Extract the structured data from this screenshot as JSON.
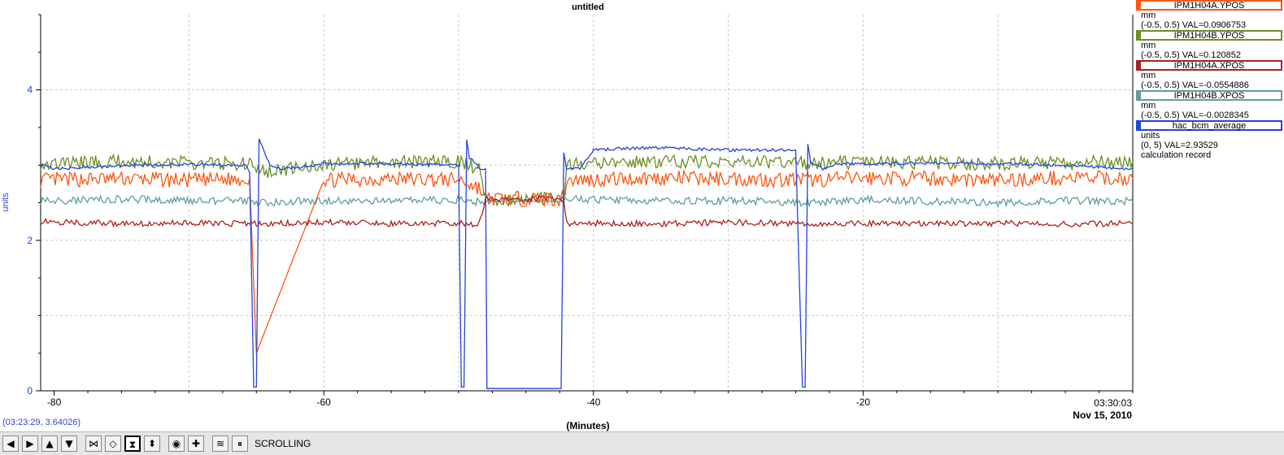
{
  "chart_data": {
    "type": "line",
    "title": "untitled",
    "xlabel": "(Minutes)",
    "ylabel": "units",
    "xlim": [
      -81,
      0
    ],
    "ylim": [
      0,
      5
    ],
    "x_ticks": [
      -80,
      -60,
      -40,
      -20
    ],
    "x_tick_labels": [
      "-80",
      "-60",
      "-40",
      "-20"
    ],
    "y_ticks": [
      0,
      2,
      4
    ],
    "y_tick_labels": [
      "0",
      "2",
      "4"
    ],
    "x_end_label": "03:30:03",
    "date_label": "Nov 15, 2010",
    "grid": true,
    "legend_position": "right",
    "series": [
      {
        "name": "IPM1H04A.YPOS",
        "color": "#ff5511",
        "units": "mm",
        "range": "(-0.5, 0.5)",
        "val_text": "VAL=0.0906753",
        "x": [
          -81,
          -75,
          -70,
          -65.5,
          -65,
          -60,
          -55,
          -49.7,
          -49.3,
          -48.5,
          -48,
          -42.2,
          -42,
          -35,
          -30,
          -24,
          -20,
          -15,
          -10,
          -5,
          0
        ],
        "y": [
          2.8,
          2.82,
          2.8,
          2.82,
          0.5,
          2.8,
          2.82,
          2.8,
          2.75,
          2.7,
          2.55,
          2.55,
          2.8,
          2.83,
          2.82,
          2.8,
          2.83,
          2.82,
          2.8,
          2.83,
          2.82
        ]
      },
      {
        "name": "IPM1H04B.YPOS",
        "color": "#6b8e23",
        "units": "mm",
        "range": "(-0.5, 0.5)",
        "val_text": "VAL=0.120852",
        "x": [
          -81,
          -75,
          -70,
          -65.5,
          -65,
          -60,
          -55,
          -49.7,
          -49.3,
          -48.5,
          -48,
          -42.2,
          -42,
          -35,
          -30,
          -24,
          -20,
          -15,
          -10,
          -5,
          0
        ],
        "y": [
          3.02,
          3.05,
          3.03,
          3.02,
          2.9,
          3.0,
          3.04,
          3.05,
          3.0,
          2.95,
          2.55,
          2.55,
          3.0,
          3.05,
          3.05,
          3.02,
          3.04,
          3.03,
          3.02,
          3.03,
          3.05
        ]
      },
      {
        "name": "IPM1H04A.XPOS",
        "color": "#aa2222",
        "units": "mm",
        "range": "(-0.5, 0.5)",
        "val_text": "VAL=-0.0554886",
        "x": [
          -81,
          -75,
          -70,
          -65.5,
          -65,
          -60,
          -55,
          -49.7,
          -49.3,
          -48.5,
          -48,
          -42.2,
          -42,
          -35,
          -30,
          -24,
          -20,
          -15,
          -10,
          -5,
          0
        ],
        "y": [
          2.25,
          2.22,
          2.23,
          2.22,
          2.22,
          2.24,
          2.22,
          2.23,
          2.2,
          2.22,
          2.55,
          2.55,
          2.23,
          2.22,
          2.24,
          2.22,
          2.23,
          2.22,
          2.23,
          2.22,
          2.22
        ]
      },
      {
        "name": "IPM1H04B.XPOS",
        "color": "#5f9ea0",
        "units": "mm",
        "range": "(-0.5, 0.5)",
        "val_text": "VAL=-0.0028345",
        "x": [
          -81,
          -75,
          -70,
          -65.5,
          -65,
          -60,
          -55,
          -49.7,
          -49.3,
          -48.5,
          -48,
          -42.2,
          -42,
          -35,
          -30,
          -24,
          -20,
          -15,
          -10,
          -5,
          0
        ],
        "y": [
          2.52,
          2.55,
          2.53,
          2.52,
          2.5,
          2.53,
          2.52,
          2.54,
          2.5,
          2.52,
          2.52,
          2.52,
          2.55,
          2.52,
          2.53,
          2.5,
          2.54,
          2.52,
          2.5,
          2.53,
          2.52
        ]
      },
      {
        "name": "hac_bcm_average",
        "color": "#2244dd",
        "units": "units",
        "range": "(0, 5)",
        "val_text": "VAL=2.93529",
        "extra_text": "calculation record",
        "x": [
          -81,
          -80,
          -75,
          -70,
          -65.7,
          -65.5,
          -65.2,
          -65.0,
          -64.8,
          -64.0,
          -63.0,
          -60,
          -55,
          -50.0,
          -49.8,
          -49.6,
          -49.4,
          -49.2,
          -48.4,
          -48.0,
          -47.9,
          -42.4,
          -42.2,
          -42.0,
          -41.0,
          -40.0,
          -38.0,
          -35,
          -30,
          -25,
          -24.5,
          -24.3,
          -24.1,
          -23.9,
          -23.0,
          -22.0,
          -20,
          -15,
          -10,
          -5,
          0
        ],
        "y": [
          3.0,
          2.95,
          3.0,
          3.01,
          3.0,
          2.9,
          0.05,
          0.05,
          3.35,
          3.0,
          2.95,
          3.02,
          3.02,
          3.0,
          0.05,
          0.05,
          3.35,
          3.1,
          2.95,
          2.95,
          0.03,
          0.03,
          3.15,
          2.95,
          2.95,
          3.2,
          3.22,
          3.23,
          3.2,
          3.2,
          0.05,
          0.05,
          3.3,
          3.05,
          2.95,
          3.02,
          3.02,
          3.03,
          3.02,
          3.0,
          2.95
        ]
      }
    ]
  },
  "coord_readout": "(03:23:29, 3.64026)",
  "toolbar": {
    "mode_label": "SCROLLING",
    "buttons": [
      {
        "icon": "arrow-left-icon",
        "glyph": "◀"
      },
      {
        "icon": "arrow-right-icon",
        "glyph": "▶"
      },
      {
        "icon": "arrow-up-icon",
        "glyph": "▲"
      },
      {
        "icon": "arrow-down-icon",
        "glyph": "▼"
      },
      {
        "icon": "zoom-in-horizontal-icon",
        "glyph": "⋈"
      },
      {
        "icon": "zoom-out-horizontal-icon",
        "glyph": "◇"
      },
      {
        "icon": "zoom-in-vertical-icon",
        "glyph": "⧗"
      },
      {
        "icon": "zoom-out-vertical-icon",
        "glyph": "⬍"
      },
      {
        "icon": "autoscale-icon",
        "glyph": "◉"
      },
      {
        "icon": "crosshair-icon",
        "glyph": "✚"
      },
      {
        "icon": "scroll-mode-icon",
        "glyph": "≋"
      },
      {
        "icon": "pause-icon",
        "glyph": "⏸"
      }
    ]
  }
}
